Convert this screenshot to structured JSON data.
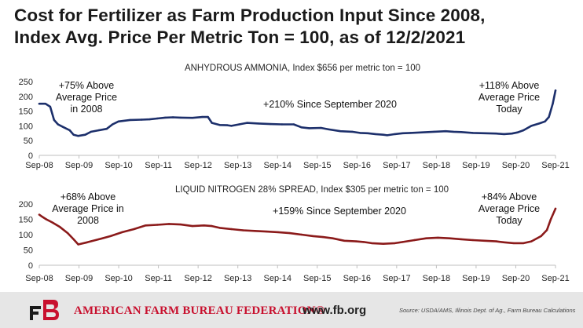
{
  "title_line1": "Cost for Fertilizer as Farm Production Input Since 2008,",
  "title_line2": "Index Avg. Price Per Metric Ton = 100, as of 12/2/2021",
  "colors": {
    "series1": "#1c2f6b",
    "series2": "#8b1a1a",
    "axis": "#bfbfbf",
    "text": "#262626",
    "brand": "#c8102e"
  },
  "chart_data": [
    {
      "type": "line",
      "title": "ANHYDROUS AMMONIA, Index $656 per metric ton = 100",
      "xlabel": "",
      "ylabel": "",
      "ylim": [
        0,
        250
      ],
      "yticks": [
        "0",
        "50",
        "100",
        "150",
        "200",
        "250"
      ],
      "xticks": [
        "Sep-08",
        "Sep-09",
        "Sep-10",
        "Sep-11",
        "Sep-12",
        "Sep-13",
        "Sep-14",
        "Sep-15",
        "Sep-16",
        "Sep-17",
        "Sep-18",
        "Sep-19",
        "Sep-20",
        "Sep-21"
      ],
      "xlim": [
        2008.67,
        2021.92
      ],
      "series": [
        {
          "name": "Anhydrous Ammonia",
          "x": [
            2008.67,
            2008.83,
            2008.95,
            2009.05,
            2009.15,
            2009.3,
            2009.45,
            2009.55,
            2009.67,
            2009.85,
            2010.0,
            2010.2,
            2010.4,
            2010.55,
            2010.7,
            2011.0,
            2011.3,
            2011.5,
            2011.7,
            2011.9,
            2012.1,
            2012.3,
            2012.6,
            2012.85,
            2013.0,
            2013.1,
            2013.3,
            2013.5,
            2013.6,
            2013.8,
            2014.0,
            2014.3,
            2014.6,
            2014.9,
            2015.2,
            2015.4,
            2015.6,
            2015.9,
            2016.1,
            2016.4,
            2016.7,
            2016.9,
            2017.1,
            2017.3,
            2017.5,
            2017.6,
            2017.8,
            2018.0,
            2018.2,
            2018.5,
            2018.8,
            2019.1,
            2019.3,
            2019.5,
            2019.8,
            2020.1,
            2020.4,
            2020.6,
            2020.8,
            2020.95,
            2021.1,
            2021.3,
            2021.5,
            2021.65,
            2021.75,
            2021.85,
            2021.92
          ],
          "values": [
            175,
            175,
            165,
            120,
            105,
            95,
            85,
            70,
            66,
            70,
            80,
            85,
            90,
            105,
            115,
            120,
            121,
            122,
            125,
            128,
            129,
            128,
            127,
            130,
            130,
            110,
            103,
            102,
            100,
            105,
            110,
            108,
            106,
            105,
            105,
            95,
            92,
            93,
            88,
            82,
            80,
            76,
            75,
            72,
            70,
            68,
            72,
            75,
            76,
            78,
            80,
            82,
            80,
            79,
            76,
            75,
            74,
            72,
            74,
            78,
            85,
            100,
            108,
            115,
            130,
            175,
            220
          ]
        }
      ],
      "annotations": [
        {
          "lines": [
            "+75% Above",
            "Average Price",
            "in 2008"
          ]
        },
        {
          "lines": [
            "+210% Since September 2020"
          ]
        },
        {
          "lines": [
            "+118% Above",
            "Average Price",
            "Today"
          ]
        }
      ]
    },
    {
      "type": "line",
      "title": "LIQUID NITROGEN 28% SPREAD, Index $305 per metric ton = 100",
      "xlabel": "",
      "ylabel": "",
      "ylim": [
        0,
        200
      ],
      "yticks": [
        "0",
        "50",
        "100",
        "150",
        "200"
      ],
      "xticks": [
        "Sep-08",
        "Sep-09",
        "Sep-10",
        "Sep-11",
        "Sep-12",
        "Sep-13",
        "Sep-14",
        "Sep-15",
        "Sep-16",
        "Sep-17",
        "Sep-18",
        "Sep-19",
        "Sep-20",
        "Sep-21"
      ],
      "xlim": [
        2008.67,
        2021.92
      ],
      "series": [
        {
          "name": "Liquid Nitrogen 28%",
          "x": [
            2008.67,
            2008.75,
            2008.85,
            2009.0,
            2009.2,
            2009.4,
            2009.55,
            2009.67,
            2009.9,
            2010.2,
            2010.5,
            2010.8,
            2011.1,
            2011.4,
            2011.7,
            2012.0,
            2012.3,
            2012.6,
            2012.9,
            2013.1,
            2013.3,
            2013.6,
            2013.9,
            2014.2,
            2014.5,
            2014.8,
            2015.1,
            2015.4,
            2015.7,
            2015.95,
            2016.2,
            2016.5,
            2016.8,
            2017.0,
            2017.2,
            2017.5,
            2017.8,
            2018.0,
            2018.3,
            2018.6,
            2018.9,
            2019.2,
            2019.5,
            2019.8,
            2020.1,
            2020.4,
            2020.6,
            2020.85,
            2021.1,
            2021.3,
            2021.55,
            2021.7,
            2021.8,
            2021.92
          ],
          "values": [
            165,
            158,
            150,
            140,
            125,
            105,
            85,
            68,
            75,
            85,
            95,
            108,
            118,
            130,
            132,
            135,
            133,
            128,
            130,
            128,
            122,
            118,
            114,
            112,
            110,
            108,
            105,
            100,
            95,
            92,
            88,
            80,
            78,
            76,
            72,
            70,
            72,
            76,
            82,
            88,
            90,
            88,
            85,
            82,
            80,
            78,
            75,
            72,
            72,
            78,
            95,
            115,
            150,
            185
          ]
        }
      ],
      "annotations": [
        {
          "lines": [
            "+68% Above",
            "Average Price in",
            "2008"
          ]
        },
        {
          "lines": [
            "+159% Since September 2020"
          ]
        },
        {
          "lines": [
            "+84% Above",
            "Average Price",
            "Today"
          ]
        }
      ]
    }
  ],
  "footer": {
    "org_name": "AMERICAN FARM BUREAU FEDERATION®",
    "url": "www.fb.org",
    "source": "Source: USDA/AMS, Illinois Dept. of Ag., Farm Bureau Calculations",
    "logo_letters": "FB"
  }
}
